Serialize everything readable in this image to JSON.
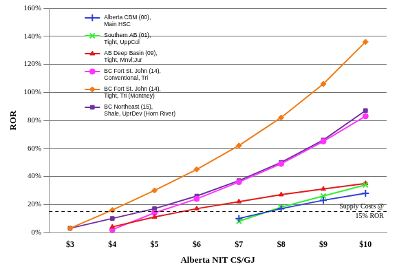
{
  "chart_data": {
    "type": "line",
    "x_label": "Alberta NIT C$/GJ",
    "y_label": "ROR",
    "categories": [
      "$3",
      "$4",
      "$5",
      "$6",
      "$7",
      "$8",
      "$9",
      "$10"
    ],
    "ylim": [
      0,
      160
    ],
    "yticks": [
      {
        "value": 0,
        "label": "0%"
      },
      {
        "value": 20,
        "label": "20%"
      },
      {
        "value": 40,
        "label": "40%"
      },
      {
        "value": 60,
        "label": "60%"
      },
      {
        "value": 80,
        "label": "80%"
      },
      {
        "value": 100,
        "label": "100%"
      },
      {
        "value": 120,
        "label": "120%"
      },
      {
        "value": 140,
        "label": "140%"
      },
      {
        "value": 160,
        "label": "160%"
      }
    ],
    "grid": true,
    "legend": "upper left",
    "series": [
      {
        "name": "Alberta CBM (00), Main HSC",
        "color": "#2b3fd4",
        "marker": "plus",
        "values": [
          null,
          null,
          null,
          null,
          10,
          17,
          23,
          28
        ]
      },
      {
        "name": "Southern AB (01), Tight, UppCol",
        "color": "#33ee33",
        "marker": "x",
        "values": [
          null,
          null,
          null,
          null,
          8,
          18,
          26,
          34
        ]
      },
      {
        "name": "AB Deep Basin (09), Tight, Mnvl;Jur",
        "color": "#e31a1a",
        "marker": "triangle",
        "values": [
          null,
          4,
          11,
          17,
          22,
          27,
          31,
          35
        ]
      },
      {
        "name": "BC Fort St. John (14), Conventional, Tri",
        "color": "#ff33ff",
        "marker": "circle",
        "values": [
          null,
          2,
          14,
          24,
          36,
          49,
          65,
          83
        ]
      },
      {
        "name": "BC Fort St. John (14), Tight, Tri (Montney)",
        "color": "#f07b14",
        "marker": "diamond",
        "values": [
          3,
          16,
          30,
          45,
          62,
          82,
          106,
          136
        ]
      },
      {
        "name": "BC Northeast (15), Shale, UprDev (Horn River)",
        "color": "#7030a0",
        "marker": "square",
        "values": [
          3,
          10,
          17,
          26,
          37,
          50,
          66,
          87
        ]
      }
    ],
    "annotations": [
      {
        "type": "hline",
        "y": 15,
        "line_style": "dashed",
        "text": [
          "Supply Costs @",
          "15% ROR"
        ]
      }
    ]
  }
}
